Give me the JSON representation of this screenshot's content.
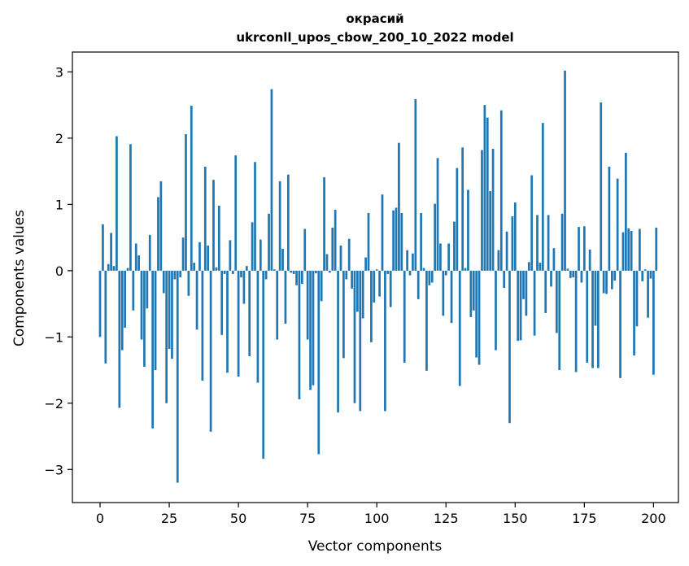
{
  "chart_data": {
    "type": "bar",
    "title": "окрасий",
    "subtitle": "ukrconll_upos_cbow_200_10_2022 model",
    "xlabel": "Vector components",
    "ylabel": "Components values",
    "xlim": [
      -10,
      209
    ],
    "ylim": [
      -3.5,
      3.3
    ],
    "xticks": [
      0,
      25,
      50,
      75,
      100,
      125,
      150,
      175,
      200
    ],
    "xtick_labels": [
      "0",
      "25",
      "50",
      "75",
      "100",
      "125",
      "150",
      "175",
      "200"
    ],
    "yticks": [
      -3,
      -2,
      -1,
      0,
      1,
      2,
      3
    ],
    "ytick_labels": [
      "−3",
      "−2",
      "−1",
      "0",
      "1",
      "2",
      "3"
    ],
    "grid": false,
    "legend": "none",
    "bar_color": "#1f77b4",
    "values": [
      -1.0,
      0.7,
      -1.4,
      0.1,
      0.57,
      0.07,
      2.03,
      -2.07,
      -1.2,
      -0.86,
      0.04,
      1.91,
      -0.6,
      0.41,
      0.23,
      -1.04,
      -1.45,
      -0.57,
      0.54,
      -2.38,
      -1.5,
      1.11,
      1.35,
      -0.34,
      -2.0,
      -1.18,
      -1.33,
      -0.13,
      -3.2,
      -0.1,
      0.5,
      2.06,
      -0.38,
      2.49,
      0.12,
      -0.89,
      0.43,
      -1.66,
      1.57,
      0.38,
      -2.43,
      1.37,
      0.05,
      0.98,
      -0.97,
      -0.05,
      -1.54,
      0.46,
      -0.05,
      1.74,
      -1.6,
      -0.1,
      -0.5,
      0.07,
      -1.29,
      0.73,
      1.64,
      -1.69,
      0.47,
      -2.84,
      -0.13,
      0.86,
      2.74,
      0.02,
      -1.04,
      1.35,
      0.33,
      -0.8,
      1.45,
      -0.03,
      -0.05,
      -0.22,
      -1.94,
      -0.2,
      0.63,
      -1.04,
      -1.8,
      -1.73,
      -0.04,
      -2.77,
      -0.46,
      1.41,
      0.25,
      -0.03,
      0.65,
      0.92,
      -2.14,
      0.38,
      -1.32,
      -0.13,
      0.48,
      -0.27,
      -2.0,
      -0.62,
      -2.12,
      -0.72,
      0.2,
      0.87,
      -1.08,
      -0.48,
      0.02,
      -0.39,
      1.15,
      -2.12,
      -0.05,
      -0.55,
      0.91,
      0.95,
      1.93,
      0.87,
      -1.39,
      0.31,
      -0.07,
      0.26,
      2.59,
      -0.43,
      0.87,
      0.04,
      -1.51,
      -0.22,
      -0.18,
      1.01,
      1.7,
      0.41,
      -0.68,
      -0.07,
      0.41,
      -0.79,
      0.74,
      1.55,
      -1.74,
      1.86,
      0.04,
      1.22,
      -0.7,
      -0.6,
      -1.31,
      -1.42,
      1.82,
      2.5,
      2.31,
      1.2,
      1.84,
      -1.2,
      0.31,
      2.42,
      -0.26,
      0.59,
      -2.3,
      0.82,
      1.03,
      -1.06,
      -1.05,
      -0.43,
      -0.68,
      0.13,
      1.44,
      -0.98,
      0.84,
      0.12,
      2.23,
      -0.64,
      0.84,
      -0.24,
      0.34,
      -0.94,
      -1.5,
      0.86,
      3.02,
      0.03,
      -0.11,
      -0.1,
      -1.53,
      0.66,
      -0.18,
      0.67,
      -1.39,
      0.32,
      -1.47,
      -0.83,
      -1.47,
      2.54,
      -0.34,
      -0.35,
      1.57,
      -0.28,
      -0.15,
      1.39,
      -1.62,
      0.58,
      1.78,
      0.64,
      0.6,
      -1.28,
      -0.84,
      0.63,
      -0.16,
      0.02,
      -0.71,
      -0.12,
      -1.57,
      0.65
    ]
  }
}
